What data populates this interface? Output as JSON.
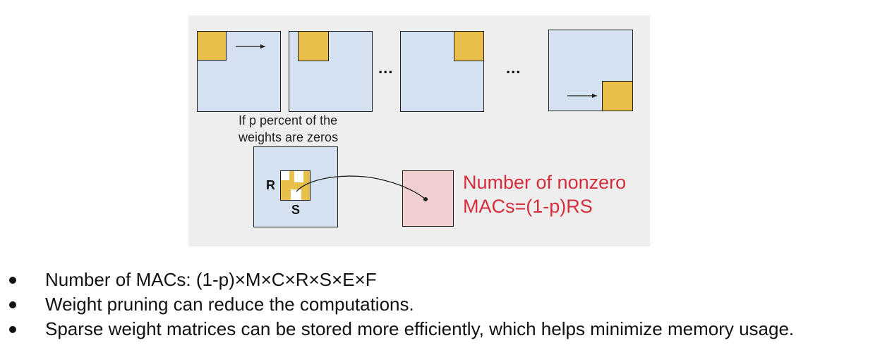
{
  "diagram": {
    "ellipsis_1": "...",
    "ellipsis_2": "...",
    "caption_line1": "If p percent of the",
    "caption_line2": "weights are zeros",
    "label_r": "R",
    "label_s": "S",
    "note_line1": "Number of nonzero",
    "note_line2": "MACs=(1-p)RS"
  },
  "bullets": [
    "Number of MACs: (1-p)×M×C×R×S×E×F",
    "Weight pruning can reduce the computations.",
    "Sparse weight matrices can be stored more efficiently, which helps minimize memory usage."
  ],
  "colors": {
    "input_fill": "#d4e1f0",
    "kernel_fill": "#e8bf4a",
    "output_fill": "#efcfcf",
    "panel_bg": "#eeeeee",
    "note_text": "#d62e3d"
  }
}
